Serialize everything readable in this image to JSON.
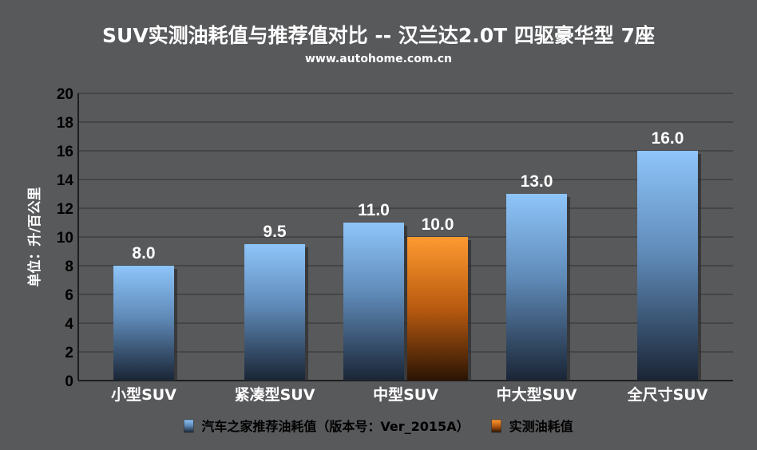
{
  "chart_data": {
    "type": "bar",
    "title": "SUV实测油耗值与推荐值对比 -- 汉兰达2.0T 四驱豪华型 7座",
    "subtitle": "www.autohome.com.cn",
    "ylabel": "单位：升/百公里",
    "xlabel": "",
    "ylim": [
      0,
      20
    ],
    "yticks": [
      0,
      2,
      4,
      6,
      8,
      10,
      12,
      14,
      16,
      18,
      20
    ],
    "grid": true,
    "categories": [
      "小型SUV",
      "紧凑型SUV",
      "中型SUV",
      "中大型SUV",
      "全尺寸SUV"
    ],
    "series": [
      {
        "name": "汽车之家推荐油耗值（版本号：Ver_2015A）",
        "values": [
          8.0,
          9.5,
          11.0,
          13.0,
          16.0
        ],
        "color": "#7fbaf3"
      },
      {
        "name": "实测油耗值",
        "values": [
          null,
          null,
          10.0,
          null,
          null
        ],
        "color": "#ff8a1c"
      }
    ],
    "data_labels": [
      [
        "8.0",
        "9.5",
        "11.0",
        "13.0",
        "16.0"
      ],
      [
        null,
        null,
        "10.0",
        null,
        null
      ]
    ],
    "legend_position": "bottom"
  }
}
